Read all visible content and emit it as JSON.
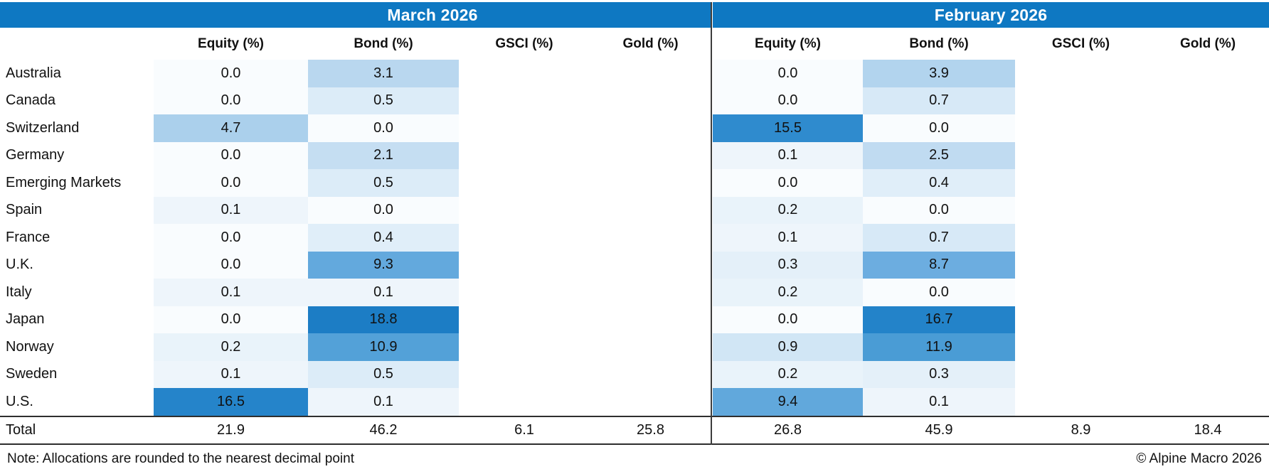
{
  "table": {
    "total_label": "Total",
    "note": "Note: Allocations are rounded to the nearest decimal point",
    "copyright": "© Alpine Macro 2026"
  },
  "colors": {
    "header_blue": "#0e78c2",
    "divider": "#3d3d3d",
    "rule": "#2e2e2e"
  },
  "chart_data": {
    "type": "table",
    "subtype": "heatmap-table",
    "categories": [
      "Australia",
      "Canada",
      "Switzerland",
      "Germany",
      "Emerging Markets",
      "Spain",
      "France",
      "U.K.",
      "Italy",
      "Japan",
      "Norway",
      "Sweden",
      "U.S."
    ],
    "panels": [
      {
        "title": "March 2026",
        "columns": [
          "Equity (%)",
          "Bond (%)",
          "GSCI (%)",
          "Gold (%)"
        ],
        "equity": [
          0.0,
          0.0,
          4.7,
          0.0,
          0.0,
          0.1,
          0.0,
          0.0,
          0.1,
          0.0,
          0.2,
          0.1,
          16.5
        ],
        "bond": [
          3.1,
          0.5,
          0.0,
          2.1,
          0.5,
          0.0,
          0.4,
          9.3,
          0.1,
          18.8,
          10.9,
          0.5,
          0.1
        ],
        "gsci": [],
        "gold": [],
        "total": {
          "equity": 21.9,
          "bond": 46.2,
          "gsci": 6.1,
          "gold": 25.8
        }
      },
      {
        "title": "February 2026",
        "columns": [
          "Equity (%)",
          "Bond (%)",
          "GSCI (%)",
          "Gold (%)"
        ],
        "equity": [
          0.0,
          0.0,
          15.5,
          0.1,
          0.0,
          0.2,
          0.1,
          0.3,
          0.2,
          0.0,
          0.9,
          0.2,
          9.4
        ],
        "bond": [
          3.9,
          0.7,
          0.0,
          2.5,
          0.4,
          0.0,
          0.7,
          8.7,
          0.0,
          16.7,
          11.9,
          0.3,
          0.1
        ],
        "gsci": [],
        "gold": [],
        "total": {
          "equity": 26.8,
          "bond": 45.9,
          "gsci": 8.9,
          "gold": 18.4
        }
      }
    ],
    "heatmap_scale": [
      [
        0,
        "#f9fcfe"
      ],
      [
        0.1,
        "#eef5fb"
      ],
      [
        0.3,
        "#e4f0f9"
      ],
      [
        0.5,
        "#dcecf8"
      ],
      [
        0.9,
        "#d1e6f5"
      ],
      [
        2.1,
        "#c5def2"
      ],
      [
        3.1,
        "#b9d7ef"
      ],
      [
        4.7,
        "#abd0ec"
      ],
      [
        8.7,
        "#6cade0"
      ],
      [
        9.4,
        "#61a8dc"
      ],
      [
        11.9,
        "#4a9cd5"
      ],
      [
        15.5,
        "#2f8bce"
      ],
      [
        16.7,
        "#2383c9"
      ],
      [
        18.8,
        "#1c7dc5"
      ]
    ],
    "note": "Note: Allocations are rounded to the nearest decimal point",
    "source": "© Alpine Macro 2026"
  }
}
